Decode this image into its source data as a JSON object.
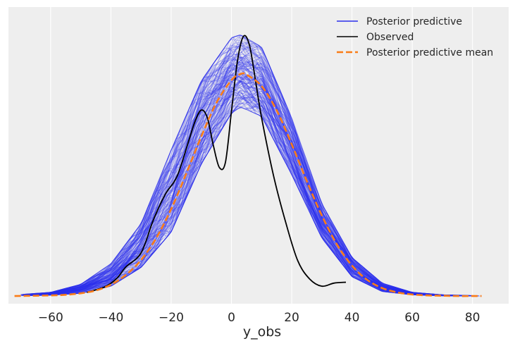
{
  "chart_data": {
    "type": "line",
    "title": "",
    "xlabel": "y_obs",
    "ylabel": "",
    "xlim": [
      -74,
      92
    ],
    "ylim": [
      -0.0025,
      0.094
    ],
    "xticks": [
      -60,
      -40,
      -20,
      0,
      20,
      40,
      60,
      80
    ],
    "xtick_labels": [
      "−60",
      "−40",
      "−20",
      "0",
      "20",
      "40",
      "60",
      "80"
    ],
    "yticks_visible": false,
    "grid": "vertical",
    "legend_position": "top-right",
    "colors": {
      "plot_background": "#eeeeee",
      "grid": "#ffffff",
      "posterior_predictive": "#2a2eec",
      "observed": "#000000",
      "mean": "#fa7c17"
    },
    "series": [
      {
        "name": "Posterior predictive",
        "style": "thin semi-transparent lines (ensemble of posterior predictive KDEs)",
        "color": "#2a2eec",
        "x": [
          -70,
          -60,
          -50,
          -40,
          -30,
          -20,
          -10,
          0,
          3,
          10,
          20,
          30,
          40,
          50,
          60,
          70,
          83
        ],
        "y_low": [
          0.0001,
          0.0003,
          0.0009,
          0.0032,
          0.0093,
          0.0208,
          0.043,
          0.0595,
          0.0615,
          0.0585,
          0.0395,
          0.0189,
          0.0063,
          0.0015,
          0.0004,
          0.0001,
          0.0
        ],
        "y_high": [
          0.0005,
          0.0012,
          0.0038,
          0.0105,
          0.0235,
          0.0475,
          0.07,
          0.084,
          0.085,
          0.081,
          0.058,
          0.03,
          0.0125,
          0.0042,
          0.0012,
          0.0004,
          0.0001
        ]
      },
      {
        "name": "Observed",
        "style": "solid black line",
        "color": "#000000",
        "x": [
          -48,
          -42,
          -38,
          -35,
          -30,
          -26,
          -22,
          -18,
          -14,
          -12,
          -10,
          -8,
          -6,
          -4,
          -2,
          0,
          2,
          4,
          6,
          8,
          10,
          14,
          18,
          22,
          26,
          30,
          34,
          38
        ],
        "y": [
          0.0012,
          0.003,
          0.0058,
          0.0095,
          0.014,
          0.0245,
          0.033,
          0.039,
          0.051,
          0.057,
          0.0605,
          0.058,
          0.049,
          0.0418,
          0.0435,
          0.06,
          0.0765,
          0.0845,
          0.0815,
          0.07,
          0.058,
          0.039,
          0.024,
          0.0115,
          0.0055,
          0.0032,
          0.0042,
          0.0045
        ]
      },
      {
        "name": "Posterior predictive mean",
        "style": "dashed orange line",
        "color": "#fa7c17",
        "x": [
          -72,
          -65,
          -60,
          -55,
          -50,
          -45,
          -40,
          -35,
          -30,
          -25,
          -20,
          -15,
          -10,
          -5,
          0,
          3,
          5,
          10,
          15,
          20,
          25,
          30,
          35,
          40,
          45,
          50,
          55,
          60,
          65,
          70,
          75,
          80,
          83
        ],
        "y": [
          0.0,
          0.0001,
          0.0002,
          0.0004,
          0.0009,
          0.0018,
          0.0037,
          0.0069,
          0.0117,
          0.0188,
          0.0283,
          0.0398,
          0.0519,
          0.0628,
          0.0702,
          0.0722,
          0.072,
          0.0683,
          0.0604,
          0.0494,
          0.0374,
          0.0262,
          0.0168,
          0.0099,
          0.0053,
          0.0026,
          0.0012,
          0.0005,
          0.0002,
          0.0001,
          0.0,
          0.0,
          0.0
        ]
      }
    ]
  }
}
